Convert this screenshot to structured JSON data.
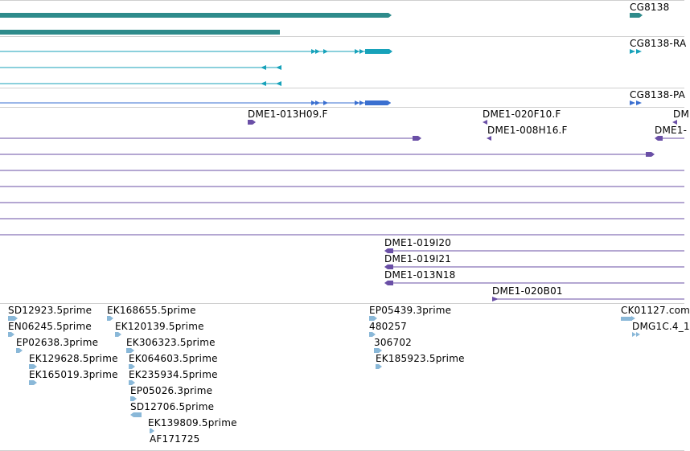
{
  "colors": {
    "gene": "#2e8b8b",
    "transcript_rna": "#17a2ba",
    "transcript_protein": "#3a6fd0",
    "clone": "#6a4fa6",
    "est": "#8ab8d8",
    "separator": "#cfcfcf"
  },
  "tracks": {
    "gene": {
      "label": "CG8138"
    },
    "transcript_rna": {
      "label": "CG8138-RA"
    },
    "transcript_protein": {
      "label": "CG8138-PA"
    },
    "clones": {
      "labels": [
        "DME1-013H09.F",
        "DME1-020F10.F",
        "DME1-008H16.F",
        "DM",
        "DME1-",
        "DME1-019I20",
        "DME1-019I21",
        "DME1-013N18",
        "DME1-020B01"
      ]
    },
    "ests": {
      "labels": [
        "SD12923.5prime",
        "EN06245.5prime",
        "EP02638.3prime",
        "EK129628.5prime",
        "EK165019.3prime",
        "EK168655.5prime",
        "EK120139.5prime",
        "EK306323.5prime",
        "EK064603.5prime",
        "EK235934.5prime",
        "EP05026.3prime",
        "SD12706.5prime",
        "EK139809.5prime",
        "AF171725",
        "EP05439.3prime",
        "480257",
        "306702",
        "EK185923.5prime",
        "CK01127.com",
        "DMG1C.4_1"
      ]
    }
  }
}
